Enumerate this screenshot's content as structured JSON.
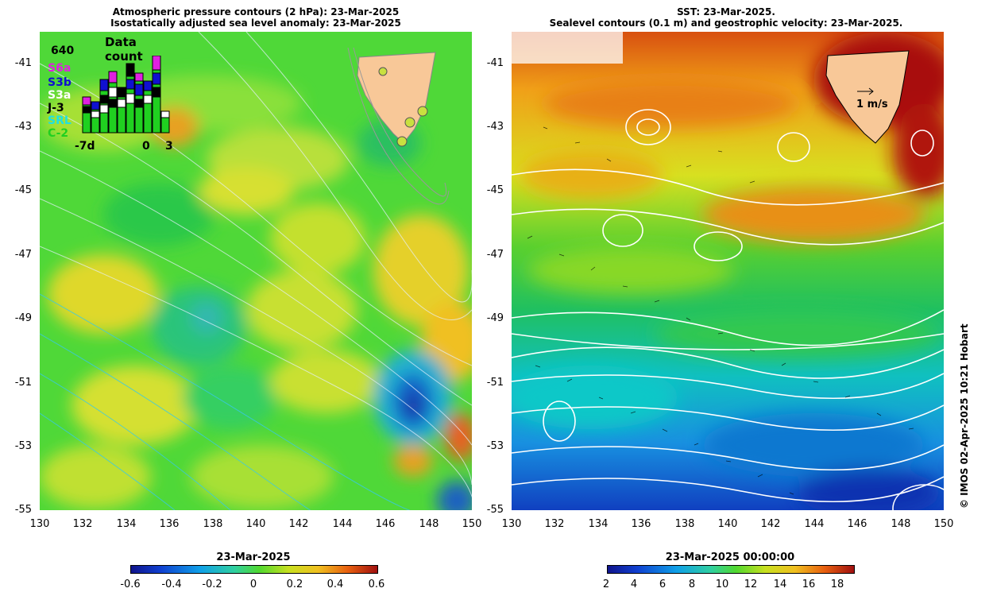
{
  "left_panel": {
    "title_line1": "Atmospheric pressure contours (2 hPa): 23-Mar-2025",
    "title_line2": "Isostatically adjusted sea level anomaly: 23-Mar-2025",
    "inset": {
      "title": "Data count",
      "max_label": "640",
      "missions": [
        {
          "name": "S6a",
          "color": "#e020e0"
        },
        {
          "name": "S3b",
          "color": "#1010d0"
        },
        {
          "name": "S3a",
          "color": "#ffffff"
        },
        {
          "name": "J-3",
          "color": "#000000"
        },
        {
          "name": "SRL",
          "color": "#20e0e0"
        },
        {
          "name": "C-2",
          "color": "#20d020"
        }
      ],
      "x_labels": [
        "-7d",
        "0",
        "3"
      ]
    },
    "colorbar": {
      "title": "23-Mar-2025",
      "ticks": [
        "-0.6",
        "-0.4",
        "-0.2",
        "0",
        "0.2",
        "0.4",
        "0.6"
      ]
    }
  },
  "right_panel": {
    "title_line1": "SST: 23-Mar-2025.",
    "title_line2": "Sealevel contours (0.1 m) and geostrophic velocity: 23-Mar-2025.",
    "scale_label": "1 m/s",
    "colorbar": {
      "title": "23-Mar-2025 00:00:00",
      "ticks": [
        "2",
        "4",
        "6",
        "8",
        "10",
        "12",
        "14",
        "16",
        "18"
      ]
    }
  },
  "axes": {
    "lat_labels": [
      "-41",
      "-43",
      "-45",
      "-47",
      "-49",
      "-51",
      "-53",
      "-55"
    ],
    "lon_labels": [
      "130",
      "132",
      "134",
      "136",
      "138",
      "140",
      "142",
      "144",
      "146",
      "148",
      "150"
    ]
  },
  "copyright": "© IMOS 02-Apr-2025 10:21 Hobart"
}
